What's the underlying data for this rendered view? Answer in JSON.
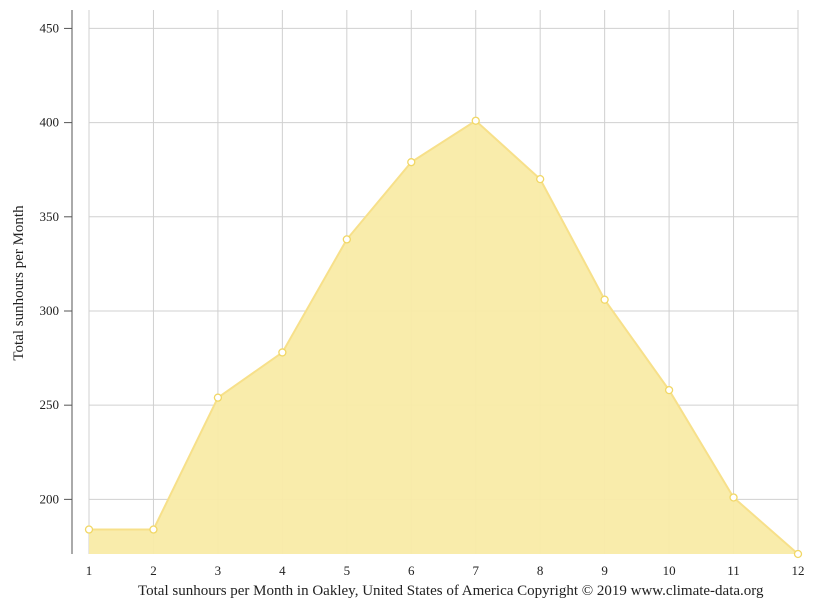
{
  "chart_data": {
    "type": "area",
    "x": [
      1,
      2,
      3,
      4,
      5,
      6,
      7,
      8,
      9,
      10,
      11,
      12
    ],
    "series": [
      {
        "values": [
          184,
          184,
          254,
          278,
          338,
          379,
          401,
          370,
          306,
          258,
          201,
          171
        ]
      }
    ],
    "ylabel": "Total sunhours per Month",
    "xlabel": "",
    "ylim": [
      171,
      455
    ],
    "xlim": [
      1,
      12
    ],
    "yticks": [
      200,
      250,
      300,
      350,
      400,
      450
    ],
    "xticks": [
      1,
      2,
      3,
      4,
      5,
      6,
      7,
      8,
      9,
      10,
      11,
      12
    ],
    "grid": true,
    "colors": {
      "fill": "#f9eba6",
      "line": "#f7e08a",
      "marker_stroke": "#f1d765",
      "grid": "#d0d0d0",
      "axis": "#555555"
    }
  },
  "caption": "Total sunhours per Month in Oakley, United States of America Copyright © 2019 www.climate-data.org"
}
